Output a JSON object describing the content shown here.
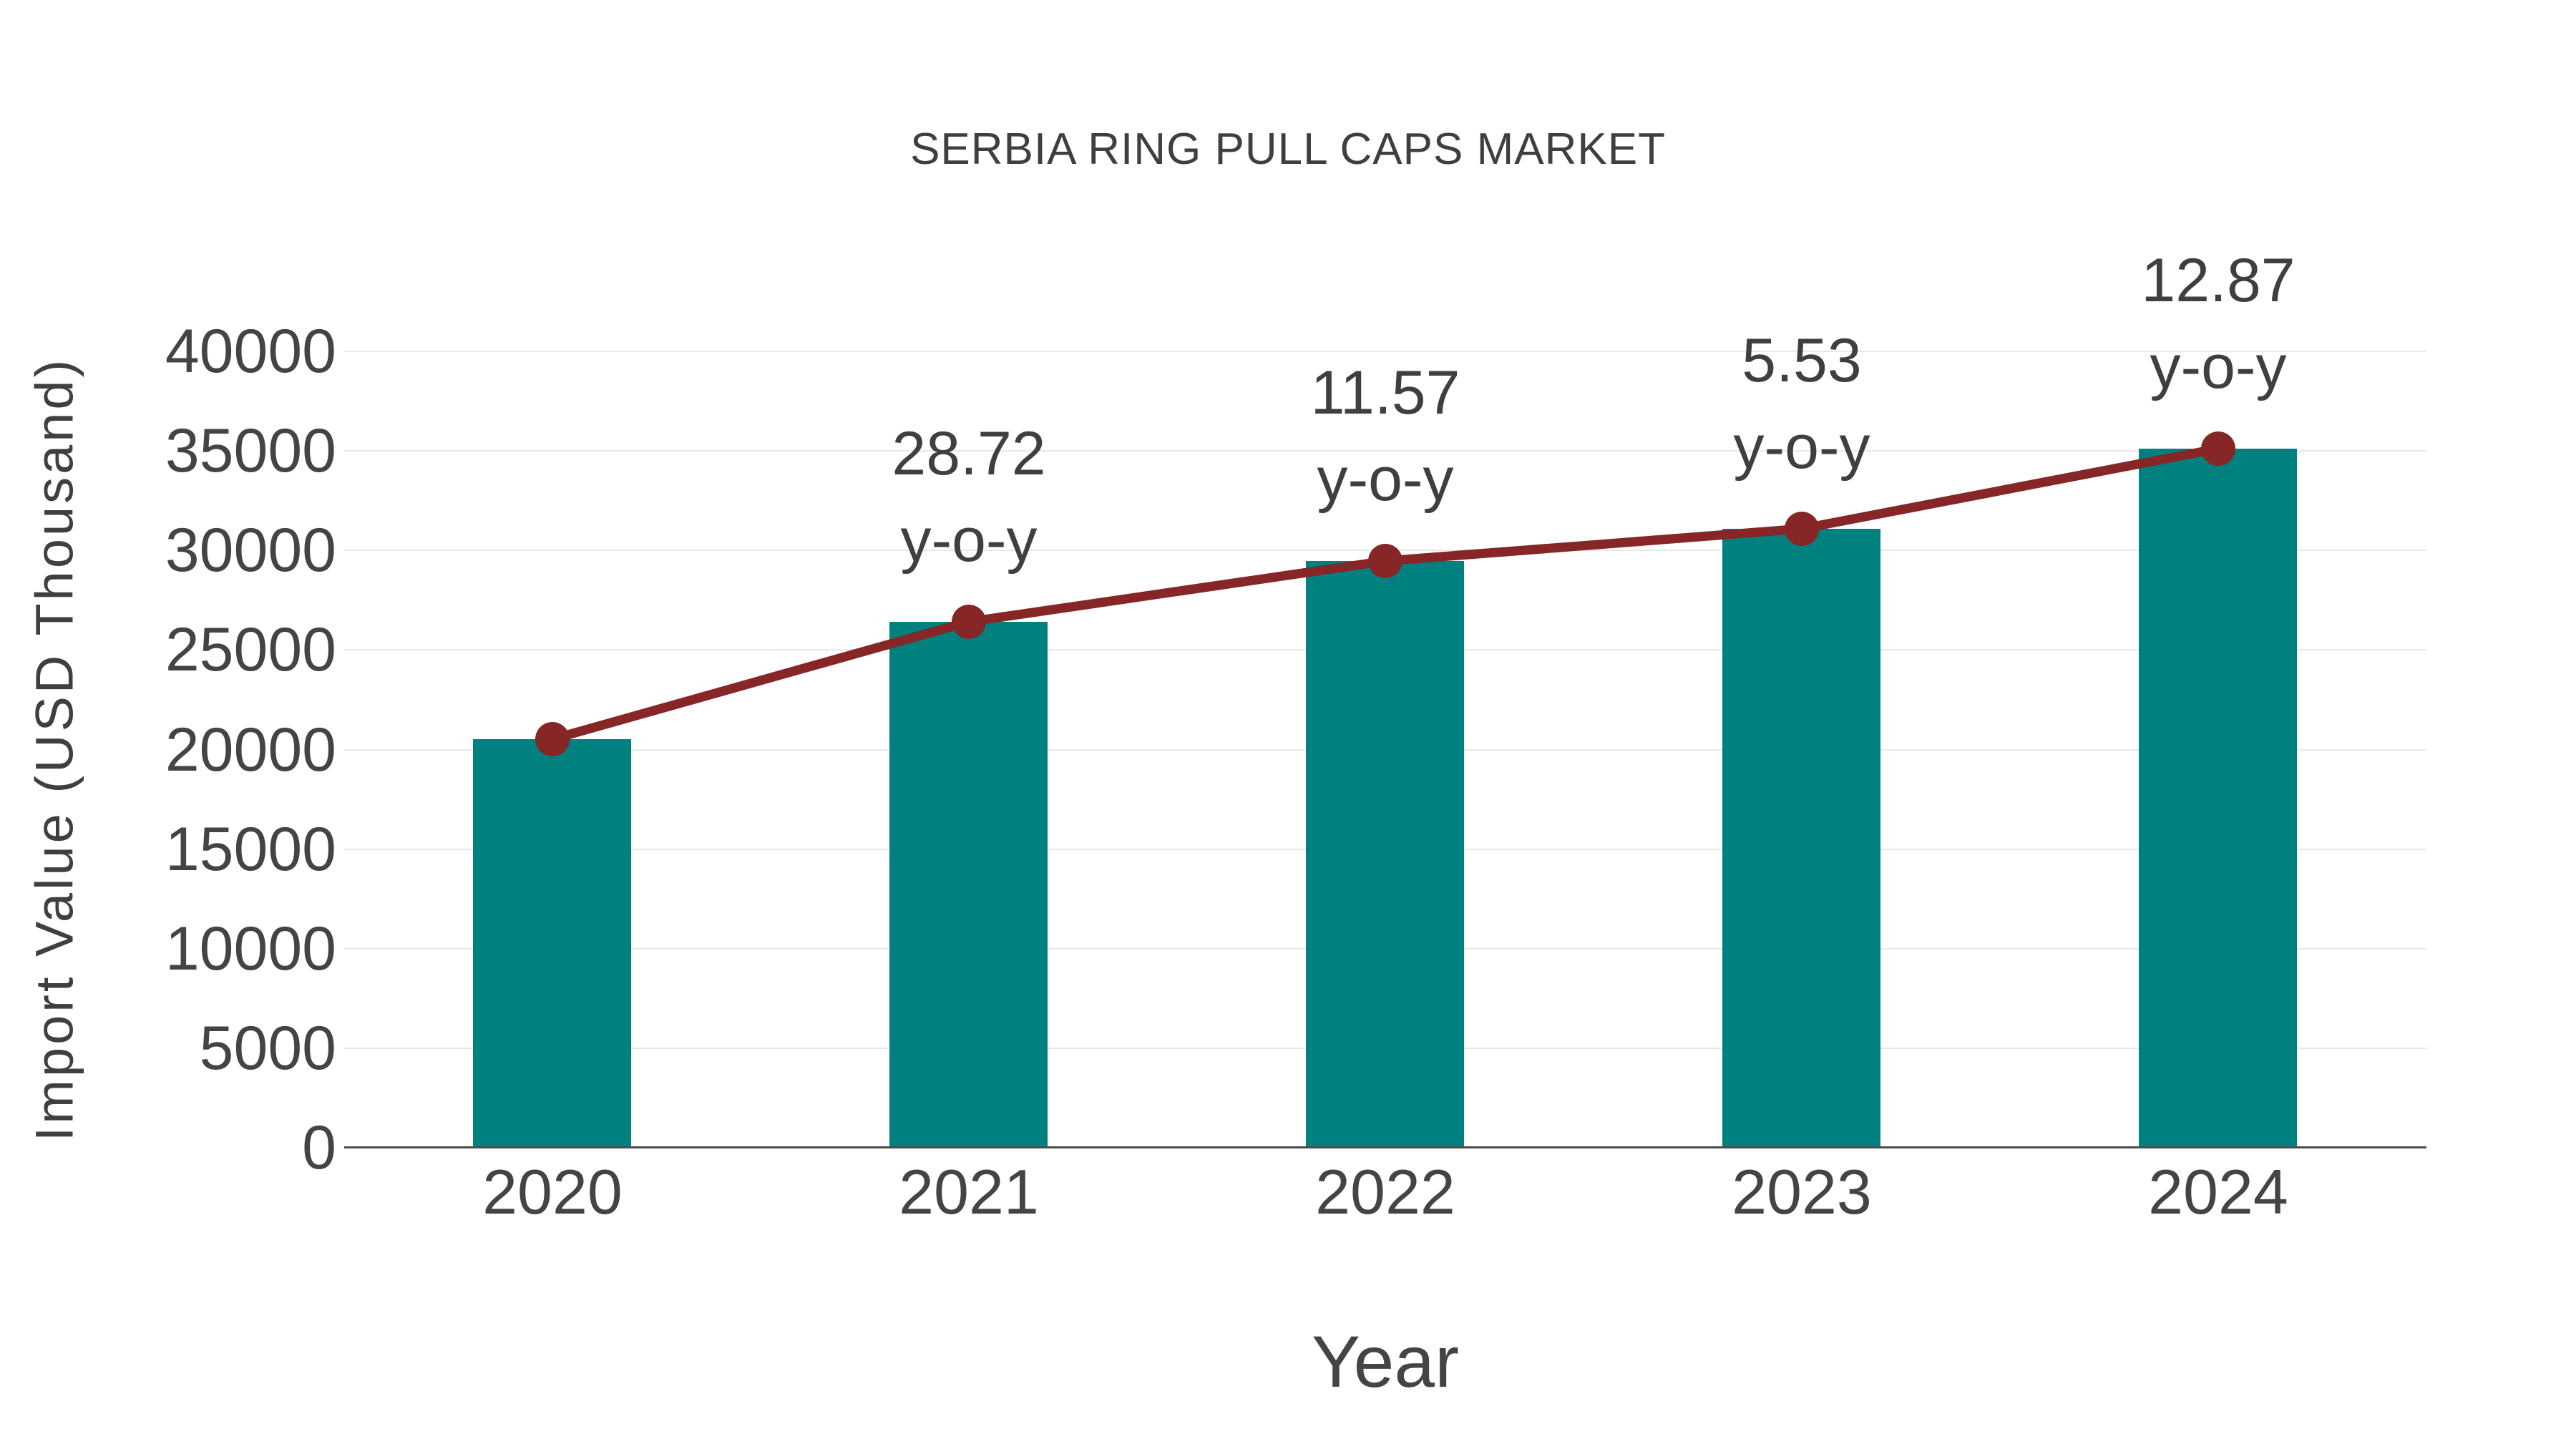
{
  "chart_data": {
    "type": "bar",
    "title": "SERBIA RING PULL CAPS MARKET",
    "xlabel": "Year",
    "ylabel": "Import Value (USD Thousand)",
    "categories": [
      "2020",
      "2021",
      "2022",
      "2023",
      "2024"
    ],
    "series": [
      {
        "name": "Import Value bars",
        "type": "bar",
        "color": "#008180",
        "values": [
          20520,
          26410,
          29470,
          31100,
          35100
        ]
      },
      {
        "name": "Import Value trend line",
        "type": "line",
        "color": "#862626",
        "values": [
          20520,
          26410,
          29470,
          31100,
          35100
        ]
      }
    ],
    "annotations": [
      {
        "category": "2021",
        "line1": "28.72",
        "line2": "y-o-y"
      },
      {
        "category": "2022",
        "line1": "11.57",
        "line2": "y-o-y"
      },
      {
        "category": "2023",
        "line1": "5.53",
        "line2": "y-o-y"
      },
      {
        "category": "2024",
        "line1": "12.87",
        "line2": "y-o-y"
      }
    ],
    "y_ticks": [
      "0",
      "5000",
      "10000",
      "15000",
      "20000",
      "25000",
      "30000",
      "35000",
      "40000"
    ],
    "ylim": [
      0,
      40000
    ],
    "grid": "horizontal-only",
    "legend": "none",
    "colors": {
      "bar": "#008180",
      "line": "#862626",
      "marker": "#862626",
      "text": "#3f3f3f",
      "tick_text": "#444444",
      "gridline": "#e8e8e8",
      "axis_line": "#4d4d4d",
      "background": "#ffffff"
    }
  }
}
